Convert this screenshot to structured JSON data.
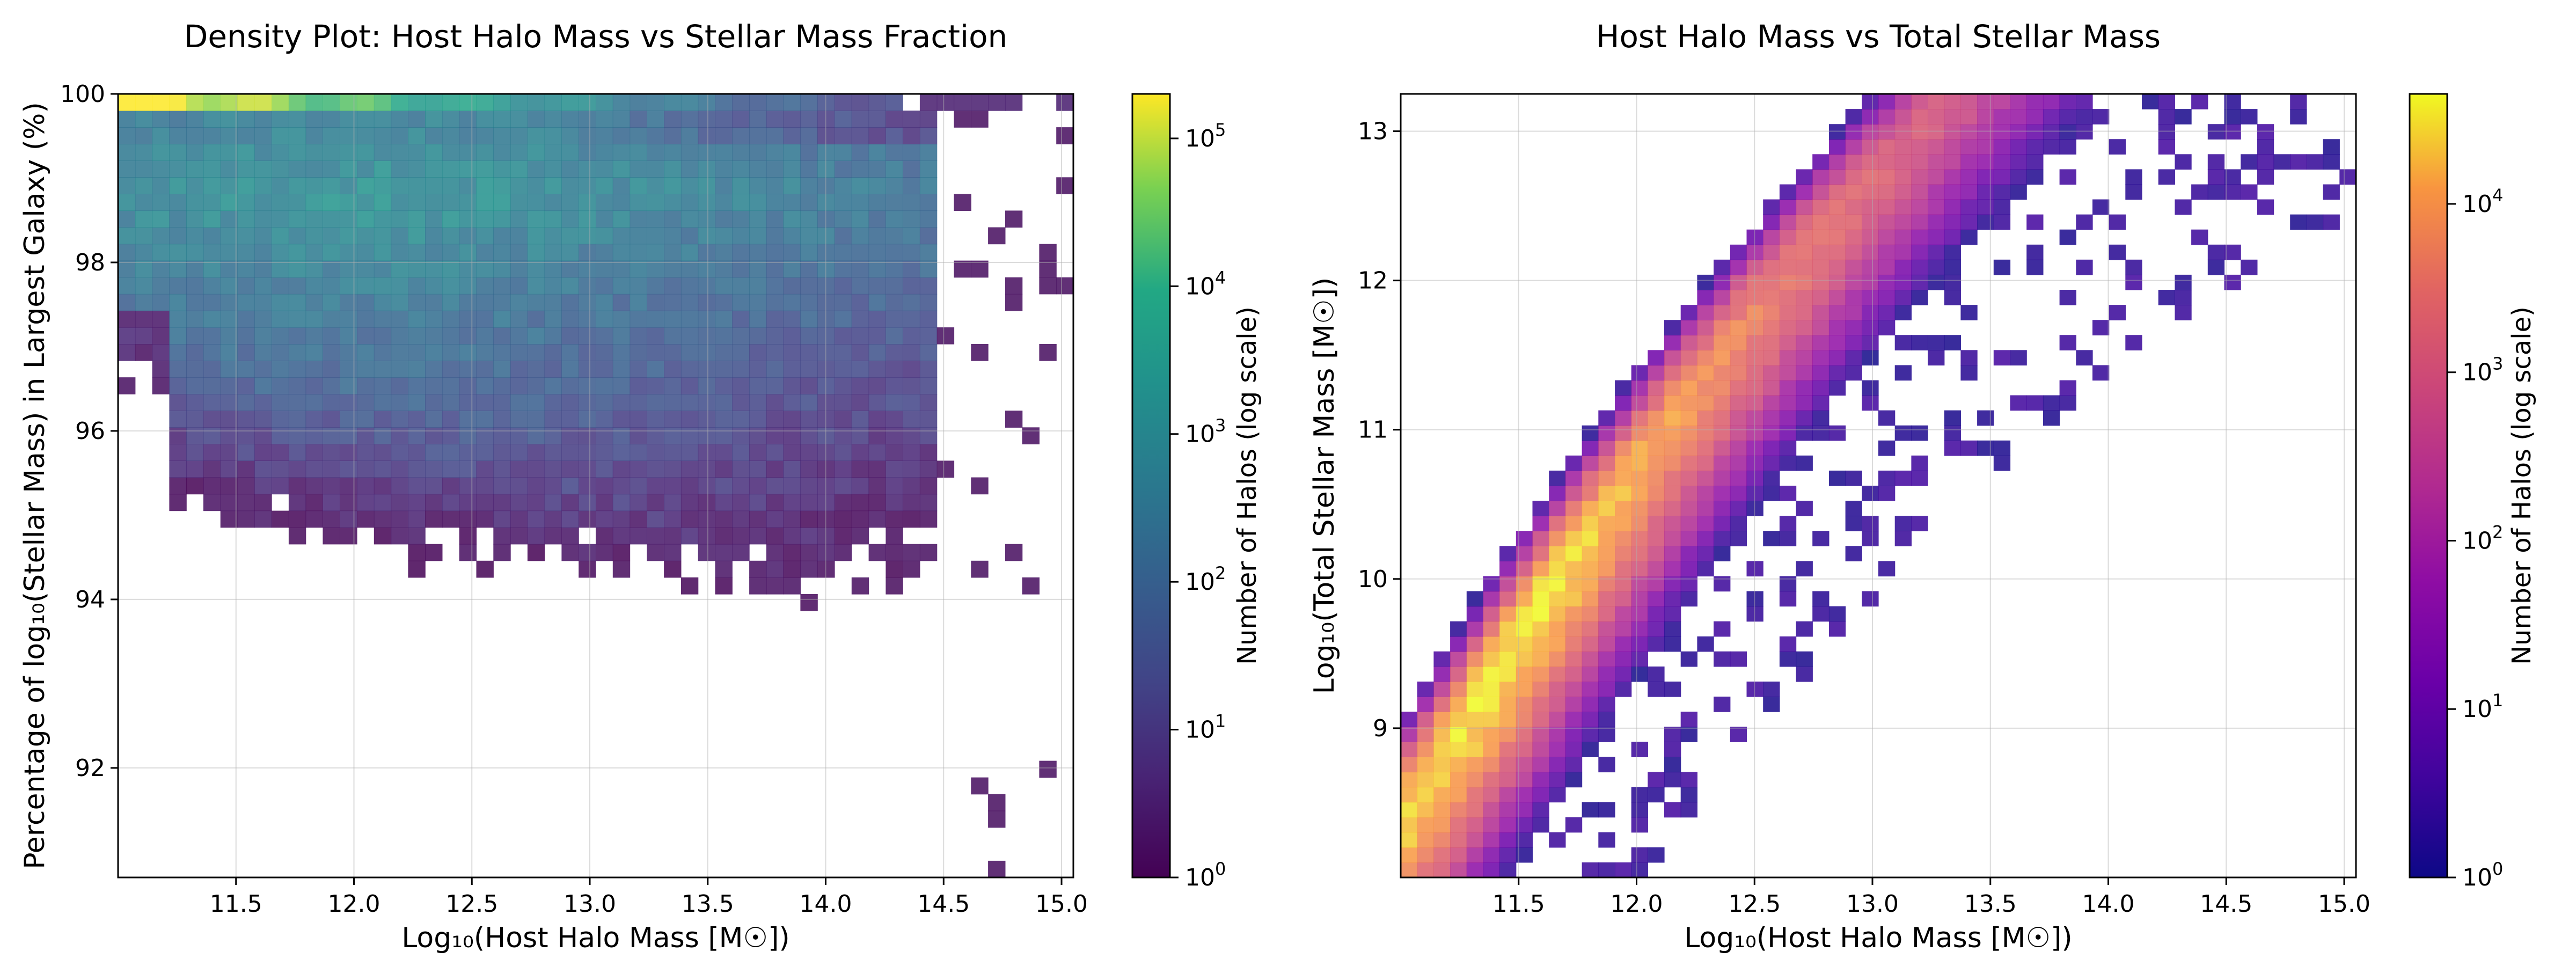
{
  "chart_data": [
    {
      "type": "heatmap",
      "title": "Density Plot: Host Halo Mass vs Stellar Mass Fraction",
      "xlabel": "Log₁₀(Host Halo Mass [M☉])",
      "ylabel": "Percentage of log₁₀(Stellar Mass) in Largest Galaxy (%)",
      "xlim": [
        11.0,
        15.05
      ],
      "ylim": [
        90.7,
        100.0
      ],
      "x_ticks": [
        "11.5",
        "12.0",
        "12.5",
        "13.0",
        "13.5",
        "14.0",
        "14.5",
        "15.0"
      ],
      "x_tick_values": [
        11.5,
        12.0,
        12.5,
        13.0,
        13.5,
        14.0,
        14.5,
        15.0
      ],
      "y_ticks": [
        "92",
        "94",
        "96",
        "98",
        "100"
      ],
      "y_tick_values": [
        92,
        94,
        96,
        98,
        100
      ],
      "grid": true,
      "colormap": "viridis",
      "colorbar": {
        "label": "Number of Halos (log scale)",
        "scale": "log",
        "range": [
          1,
          200000
        ],
        "tick_bases": [
          "10",
          "10",
          "10",
          "10",
          "10",
          "10"
        ],
        "tick_exps": [
          "0",
          "1",
          "2",
          "3",
          "4",
          "5"
        ],
        "tick_values": [
          1,
          10,
          100,
          1000,
          10000,
          100000
        ]
      }
    },
    {
      "type": "heatmap",
      "title": "Host Halo Mass vs Total Stellar Mass",
      "xlabel": "Log₁₀(Host Halo Mass [M☉])",
      "ylabel": "Log₁₀(Total Stellar Mass [M☉])",
      "xlim": [
        11.0,
        15.05
      ],
      "ylim": [
        8.0,
        13.25
      ],
      "x_ticks": [
        "11.5",
        "12.0",
        "12.5",
        "13.0",
        "13.5",
        "14.0",
        "14.5",
        "15.0"
      ],
      "x_tick_values": [
        11.5,
        12.0,
        12.5,
        13.0,
        13.5,
        14.0,
        14.5,
        15.0
      ],
      "y_ticks": [
        "9",
        "10",
        "11",
        "12",
        "13"
      ],
      "y_tick_values": [
        9,
        10,
        11,
        12,
        13
      ],
      "grid": true,
      "colormap": "plasma",
      "colorbar": {
        "label": "Number of Halos (log scale)",
        "scale": "log",
        "range": [
          1,
          45000
        ],
        "tick_bases": [
          "10",
          "10",
          "10",
          "10",
          "10"
        ],
        "tick_exps": [
          "0",
          "1",
          "2",
          "3",
          "4"
        ],
        "tick_values": [
          1,
          10,
          100,
          1000,
          10000
        ]
      }
    }
  ]
}
